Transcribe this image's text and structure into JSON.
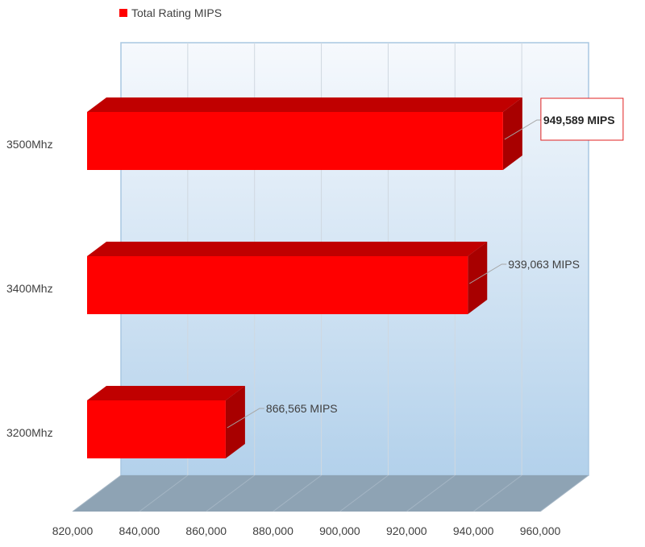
{
  "legend": {
    "label": "Total Rating MIPS",
    "color": "#ff0000"
  },
  "colors": {
    "bar_front": "#ff0000",
    "bar_top": "#c00000",
    "bar_side": "#a80000",
    "floor": "#8ea3b4",
    "wall_top": "#f6f9fd",
    "wall_bottom": "#b3d1eb",
    "gridline": "#d0d8e0",
    "callout_border": "#e02020"
  },
  "chart_data": {
    "type": "bar",
    "orientation": "horizontal",
    "style": "3d",
    "categories": [
      "3500Mhz",
      "3400Mhz",
      "3200Mhz"
    ],
    "series": [
      {
        "name": "Total Rating MIPS",
        "values": [
          949589,
          939063,
          866565
        ]
      }
    ],
    "data_labels": [
      "949,589 MIPS",
      "939,063 MIPS",
      "866,565 MIPS"
    ],
    "highlighted_label_index": 0,
    "xlim": [
      820000,
      960000
    ],
    "x_ticks": [
      820000,
      840000,
      860000,
      880000,
      900000,
      920000,
      940000,
      960000
    ],
    "x_tick_labels": [
      "820,000",
      "840,000",
      "860,000",
      "880,000",
      "900,000",
      "920,000",
      "940,000",
      "960,000"
    ],
    "grid": true,
    "legend_position": "top-left"
  }
}
